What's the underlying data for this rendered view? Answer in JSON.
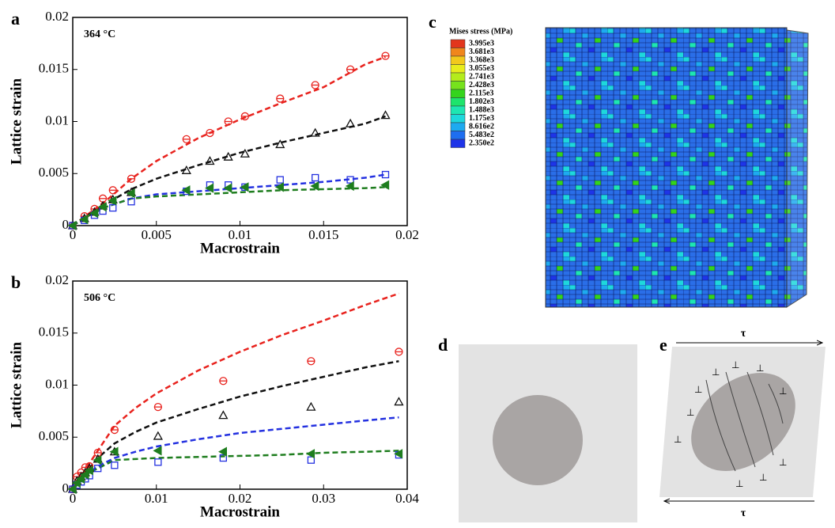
{
  "chart_data": [
    {
      "type": "scatter",
      "panel_label": "a",
      "annotation": "364 °C",
      "xlabel": "Macrostrain",
      "ylabel": "Lattice strain",
      "xlim": [
        0,
        0.02
      ],
      "xticks": [
        0,
        0.005,
        0.01,
        0.015,
        0.02
      ],
      "ylim": [
        0,
        0.02
      ],
      "yticks": [
        0,
        0.005,
        0.01,
        0.015,
        0.02
      ],
      "x": [
        0,
        0.0007,
        0.0013,
        0.0018,
        0.0024,
        0.0035,
        0.0068,
        0.0082,
        0.0093,
        0.0103,
        0.0124,
        0.0145,
        0.0166,
        0.0187
      ],
      "series": [
        {
          "color": "#e8231e",
          "marker": "circle",
          "values": [
            0,
            0.0009,
            0.0016,
            0.0026,
            0.0034,
            0.0045,
            0.0083,
            0.0089,
            0.01,
            0.0105,
            0.0122,
            0.0135,
            0.015,
            0.0163
          ]
        },
        {
          "color": "#111111",
          "marker": "triangle",
          "values": [
            0,
            0.0007,
            0.0013,
            0.0019,
            0.0025,
            0.0032,
            0.0053,
            0.0062,
            0.0066,
            0.0069,
            0.0078,
            0.0089,
            0.0098,
            0.0106
          ]
        },
        {
          "color": "#2431e0",
          "marker": "square",
          "values": [
            0,
            0.0005,
            0.001,
            0.0014,
            0.0017,
            0.0023,
            0.0033,
            0.0039,
            0.0039,
            0.0037,
            0.0044,
            0.0046,
            0.0044,
            0.0049
          ]
        },
        {
          "color": "#1e7d1e",
          "marker": "left-triangle",
          "values": [
            0,
            0.0006,
            0.0012,
            0.0018,
            0.0024,
            0.0031,
            0.0034,
            0.0036,
            0.0036,
            0.0037,
            0.0037,
            0.0038,
            0.0038,
            0.0039
          ]
        }
      ],
      "lines": {
        "x": [
          0,
          0.001,
          0.002,
          0.0035,
          0.005,
          0.0075,
          0.01,
          0.0125,
          0.015,
          0.0175,
          0.0187
        ],
        "series": [
          {
            "color": "#e8231e",
            "values": [
              0,
              0.0012,
              0.0024,
              0.0045,
              0.0062,
              0.0084,
              0.0102,
              0.0118,
              0.0133,
              0.0155,
              0.0162
            ]
          },
          {
            "color": "#111111",
            "values": [
              0,
              0.0011,
              0.0021,
              0.0035,
              0.0045,
              0.0058,
              0.007,
              0.008,
              0.0089,
              0.0098,
              0.0105
            ]
          },
          {
            "color": "#2431e0",
            "values": [
              0,
              0.001,
              0.0018,
              0.0026,
              0.003,
              0.0033,
              0.0036,
              0.0039,
              0.0042,
              0.0046,
              0.0049
            ]
          },
          {
            "color": "#1e7d1e",
            "values": [
              0,
              0.001,
              0.0018,
              0.0026,
              0.0028,
              0.003,
              0.0032,
              0.0034,
              0.0035,
              0.0036,
              0.0037
            ]
          }
        ]
      }
    },
    {
      "type": "scatter",
      "panel_label": "b",
      "annotation": "506 °C",
      "xlabel": "Macrostrain",
      "ylabel": "Lattice strain",
      "xlim": [
        0,
        0.04
      ],
      "xticks": [
        0,
        0.01,
        0.02,
        0.03,
        0.04
      ],
      "ylim": [
        0,
        0.02
      ],
      "yticks": [
        0,
        0.005,
        0.01,
        0.015,
        0.02
      ],
      "x": [
        0,
        0.0005,
        0.001,
        0.0015,
        0.002,
        0.003,
        0.005,
        0.0102,
        0.018,
        0.0285,
        0.039
      ],
      "series": [
        {
          "color": "#e8231e",
          "marker": "circle",
          "values": [
            0,
            0.0012,
            0.0016,
            0.0021,
            0.0022,
            0.0035,
            0.0057,
            0.0079,
            0.0104,
            0.0123,
            0.0132
          ]
        },
        {
          "color": "#111111",
          "marker": "triangle",
          "values": [
            0,
            0.0008,
            0.0012,
            0.0016,
            0.002,
            0.0029,
            0.0036,
            0.0051,
            0.0071,
            0.0079,
            0.0084
          ]
        },
        {
          "color": "#2431e0",
          "marker": "square",
          "values": [
            0,
            0.0004,
            0.0007,
            0.001,
            0.0013,
            0.002,
            0.0023,
            0.0026,
            0.003,
            0.0028,
            0.0033
          ]
        },
        {
          "color": "#1e7d1e",
          "marker": "left-triangle",
          "values": [
            0,
            0.0006,
            0.001,
            0.0014,
            0.0018,
            0.0028,
            0.0036,
            0.0037,
            0.0036,
            0.0034,
            0.0034
          ]
        }
      ],
      "lines": {
        "x": [
          0,
          0.001,
          0.002,
          0.003,
          0.005,
          0.0075,
          0.01,
          0.015,
          0.02,
          0.025,
          0.03,
          0.035,
          0.039
        ],
        "series": [
          {
            "color": "#e8231e",
            "values": [
              0,
              0.0012,
              0.0025,
              0.0037,
              0.0061,
              0.0078,
              0.0092,
              0.0114,
              0.0132,
              0.0148,
              0.0162,
              0.0177,
              0.0188
            ]
          },
          {
            "color": "#111111",
            "values": [
              0,
              0.001,
              0.002,
              0.003,
              0.0044,
              0.0055,
              0.0064,
              0.0077,
              0.0089,
              0.0099,
              0.0108,
              0.0117,
              0.0123
            ]
          },
          {
            "color": "#2431e0",
            "values": [
              0,
              0.0008,
              0.0016,
              0.0022,
              0.003,
              0.0036,
              0.0041,
              0.0048,
              0.0054,
              0.0058,
              0.0062,
              0.0066,
              0.0069
            ]
          },
          {
            "color": "#1e7d1e",
            "values": [
              0,
              0.0008,
              0.0016,
              0.002,
              0.0028,
              0.0029,
              0.003,
              0.0031,
              0.0032,
              0.0033,
              0.0035,
              0.0036,
              0.0037
            ]
          }
        ]
      }
    }
  ],
  "panel_c": {
    "label": "c",
    "legend_title": "Mises stress (MPa)",
    "legend_labels": [
      "3.995e3",
      "3.681e3",
      "3.368e3",
      "3.055e3",
      "2.741e3",
      "2.428e3",
      "2.115e3",
      "1.802e3",
      "1.488e3",
      "1.175e3",
      "8.616e2",
      "5.483e2",
      "2.350e2"
    ],
    "legend_colors": [
      "#e2361c",
      "#f0861c",
      "#f2c81c",
      "#e8ec1c",
      "#b4ec1c",
      "#76e21c",
      "#34d41c",
      "#1ee46c",
      "#1ee6b2",
      "#1ed8dc",
      "#1eaaf0",
      "#1e6ef0",
      "#1e34e8"
    ]
  },
  "panel_d": {
    "label": "d"
  },
  "panel_e": {
    "label": "e",
    "shear_labels": [
      "τ",
      "τ"
    ]
  }
}
